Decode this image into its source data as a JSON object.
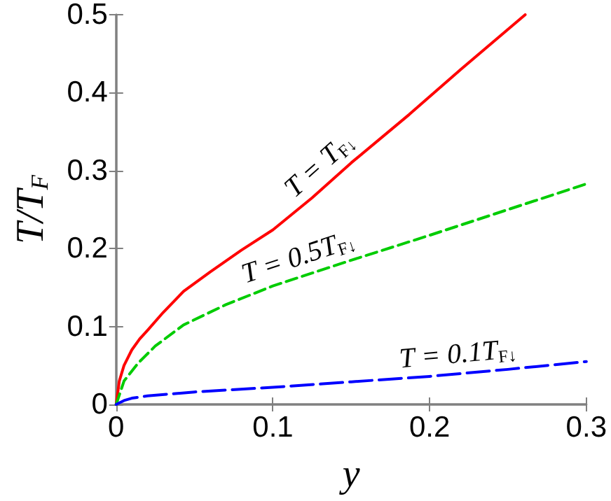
{
  "chart_data": {
    "type": "line",
    "xlabel": "y",
    "ylabel": "T/T$_{F}$",
    "xlim": [
      0,
      0.3
    ],
    "ylim": [
      0,
      0.5
    ],
    "xticks": [
      0,
      0.1,
      0.2,
      0.3
    ],
    "yticks": [
      0,
      0.1,
      0.2,
      0.3,
      0.4,
      0.5
    ],
    "grid": false,
    "marker": "none",
    "series": [
      {
        "name": "T = T$_{F↓}$",
        "color": "#ff0000",
        "line_style": "solid",
        "x": [
          0,
          0.002,
          0.005,
          0.01,
          0.015,
          0.02,
          0.03,
          0.043,
          0.06,
          0.08,
          0.1,
          0.125,
          0.15,
          0.187,
          0.22,
          0.261
        ],
        "values": [
          0,
          0.03,
          0.05,
          0.07,
          0.084,
          0.095,
          0.118,
          0.145,
          0.17,
          0.198,
          0.224,
          0.265,
          0.31,
          0.372,
          0.43,
          0.5
        ]
      },
      {
        "name": "T = 0.5T$_{F↓}$",
        "color": "#00cc00",
        "line_style": "dashed",
        "x": [
          0,
          0.005,
          0.014,
          0.025,
          0.043,
          0.07,
          0.1,
          0.15,
          0.2,
          0.25,
          0.3
        ],
        "values": [
          0,
          0.03,
          0.053,
          0.075,
          0.102,
          0.128,
          0.152,
          0.185,
          0.217,
          0.25,
          0.283
        ]
      },
      {
        "name": "T = 0.1T$_{F↓}$",
        "color": "#0000ff",
        "line_style": "dashed",
        "x": [
          0,
          0.005,
          0.01,
          0.02,
          0.05,
          0.1,
          0.15,
          0.2,
          0.25,
          0.3
        ],
        "values": [
          0,
          0.005,
          0.008,
          0.011,
          0.016,
          0.022,
          0.029,
          0.036,
          0.045,
          0.055
        ]
      }
    ]
  }
}
